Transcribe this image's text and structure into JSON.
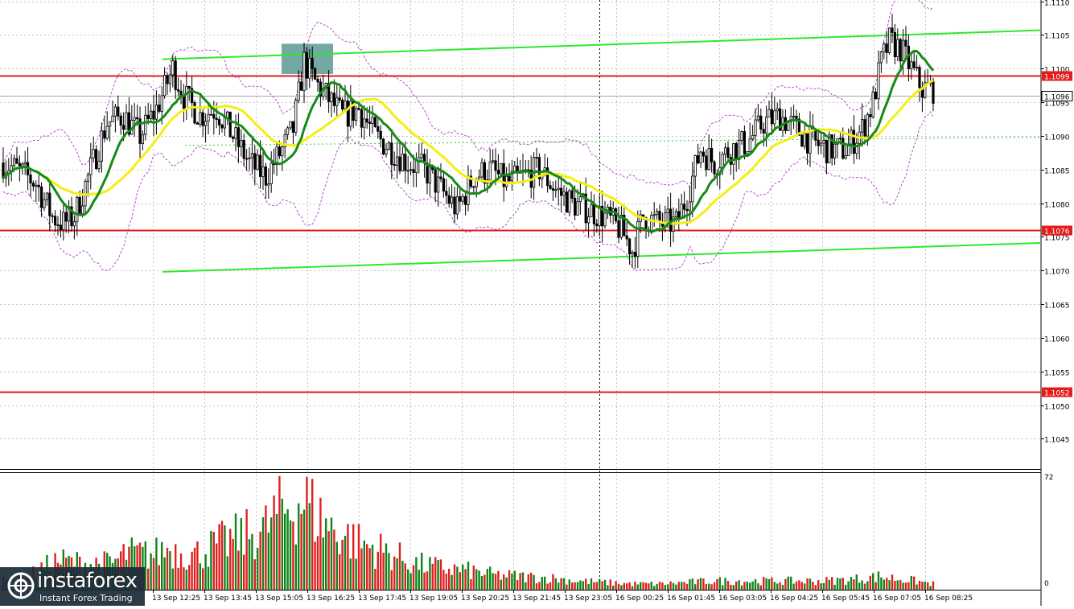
{
  "colors": {
    "up": "#11841a",
    "down": "#e01f1f",
    "candle": "#000000",
    "ma_green": "#168a16",
    "ma_yellow": "#f4ef12",
    "envelope": "#b452c9",
    "trendline": "#2ee82e",
    "level": "#e41c1c",
    "highlight": "#5a9a92",
    "grid": "#c5c5c5",
    "logo_bg": "#1a2b37"
  },
  "watermark": {
    "name": "instaforex",
    "tagline": "Instant Forex Trading",
    "icon": "instaforex-logo-icon"
  },
  "chart_data": {
    "type": "candlestick",
    "symbol": "",
    "price_axis": {
      "ylim": [
        1.10405,
        1.11102
      ],
      "ticks": [
        "1.1110",
        "1.1105",
        "1.1100",
        "1.1095",
        "1.1090",
        "1.1085",
        "1.1080",
        "1.1075",
        "1.1070",
        "1.1065",
        "1.1060",
        "1.1055",
        "1.1050",
        "1.1045"
      ],
      "grid": true
    },
    "time_axis": {
      "labels": [
        "13 Sep 12:25",
        "13 Sep 13:45",
        "13 Sep 15:05",
        "13 Sep 16:25",
        "13 Sep 17:45",
        "13 Sep 19:05",
        "13 Sep 20:25",
        "13 Sep 21:45",
        "13 Sep 23:05",
        "16 Sep 00:25",
        "16 Sep 01:45",
        "16 Sep 03:05",
        "16 Sep 04:25",
        "16 Sep 05:45",
        "16 Sep 07:05",
        "16 Sep 08:25"
      ]
    },
    "levels": [
      {
        "price": 1.1099,
        "label": "1.1099"
      },
      {
        "price": 1.1076,
        "label": "1.1076"
      },
      {
        "price": 1.1052,
        "label": "1.1052"
      }
    ],
    "current_price": {
      "price": 1.1096,
      "label": "1.1096"
    },
    "volume_axis": {
      "max_label": "72",
      "min_label": "0",
      "max": 72
    },
    "trendlines": [
      {
        "from": [
          "13 Sep 12:25",
          1.11014
        ],
        "to": [
          "16 Sep 08:55",
          1.11057
        ]
      },
      {
        "from": [
          "13 Sep 12:25",
          1.10698
        ],
        "to": [
          "16 Sep 08:55",
          1.10741
        ]
      }
    ],
    "session_separator": "13 Sep 23:05",
    "highlight_zone": {
      "from": "13 Sep 15:35",
      "to": "13 Sep 16:30",
      "price_low": 1.10992,
      "price_high": 1.11037
    },
    "price_path": [
      [
        0,
        1.1086
      ],
      [
        5,
        1.1085
      ],
      [
        12,
        1.1083
      ],
      [
        18,
        1.1078
      ],
      [
        22,
        1.1077
      ],
      [
        26,
        1.1078
      ],
      [
        32,
        1.1085
      ],
      [
        38,
        1.1092
      ],
      [
        44,
        1.1093
      ],
      [
        50,
        1.109
      ],
      [
        56,
        1.1094
      ],
      [
        62,
        1.11
      ],
      [
        66,
        1.1096
      ],
      [
        72,
        1.1093
      ],
      [
        78,
        1.1094
      ],
      [
        84,
        1.109
      ],
      [
        90,
        1.1086
      ],
      [
        96,
        1.1084
      ],
      [
        102,
        1.1088
      ],
      [
        106,
        1.1091
      ],
      [
        110,
        1.1101
      ],
      [
        114,
        1.1098
      ],
      [
        118,
        1.1096
      ],
      [
        124,
        1.1093
      ],
      [
        130,
        1.1094
      ],
      [
        136,
        1.109
      ],
      [
        142,
        1.1088
      ],
      [
        148,
        1.1086
      ],
      [
        154,
        1.1085
      ],
      [
        160,
        1.1082
      ],
      [
        166,
        1.1079
      ],
      [
        172,
        1.1084
      ],
      [
        178,
        1.1085
      ],
      [
        184,
        1.1083
      ],
      [
        190,
        1.1084
      ],
      [
        196,
        1.1085
      ],
      [
        202,
        1.1082
      ],
      [
        208,
        1.108
      ],
      [
        214,
        1.1079
      ],
      [
        220,
        1.1078
      ],
      [
        226,
        1.1076
      ],
      [
        230,
        1.1073
      ],
      [
        234,
        1.1078
      ],
      [
        240,
        1.1077
      ],
      [
        246,
        1.1077
      ],
      [
        250,
        1.1081
      ],
      [
        255,
        1.1088
      ],
      [
        260,
        1.1086
      ],
      [
        266,
        1.1088
      ],
      [
        272,
        1.1089
      ],
      [
        278,
        1.1092
      ],
      [
        284,
        1.1093
      ],
      [
        290,
        1.1091
      ],
      [
        296,
        1.1089
      ],
      [
        302,
        1.1088
      ],
      [
        308,
        1.1088
      ],
      [
        314,
        1.1091
      ],
      [
        318,
        1.1095
      ],
      [
        321,
        1.1101
      ],
      [
        324,
        1.1104
      ],
      [
        328,
        1.1103
      ],
      [
        332,
        1.11
      ],
      [
        336,
        1.1097
      ],
      [
        340,
        1.1097
      ]
    ],
    "volume_profile": [
      [
        0,
        6
      ],
      [
        10,
        10
      ],
      [
        20,
        20
      ],
      [
        30,
        18
      ],
      [
        40,
        18
      ],
      [
        45,
        25
      ],
      [
        55,
        24
      ],
      [
        60,
        28
      ],
      [
        70,
        24
      ],
      [
        80,
        32
      ],
      [
        90,
        38
      ],
      [
        95,
        40
      ],
      [
        100,
        52
      ],
      [
        105,
        56
      ],
      [
        110,
        62
      ],
      [
        115,
        50
      ],
      [
        120,
        42
      ],
      [
        130,
        32
      ],
      [
        140,
        26
      ],
      [
        150,
        18
      ],
      [
        160,
        15
      ],
      [
        170,
        13
      ],
      [
        180,
        10
      ],
      [
        190,
        9
      ],
      [
        200,
        8
      ],
      [
        210,
        6
      ],
      [
        220,
        5
      ],
      [
        230,
        4
      ],
      [
        240,
        4
      ],
      [
        250,
        5
      ],
      [
        260,
        6
      ],
      [
        270,
        6
      ],
      [
        280,
        6
      ],
      [
        290,
        6
      ],
      [
        300,
        6
      ],
      [
        310,
        7
      ],
      [
        320,
        9
      ],
      [
        330,
        7
      ],
      [
        340,
        4
      ]
    ],
    "moving_averages": [
      {
        "type": "fast",
        "color": "green"
      },
      {
        "type": "slow",
        "color": "yellow"
      }
    ],
    "envelope": {
      "style": "dashed",
      "color": "violet"
    }
  }
}
